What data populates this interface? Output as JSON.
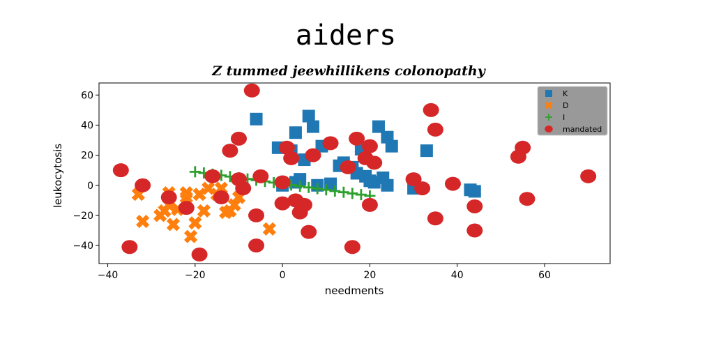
{
  "chart_data": {
    "type": "scatter",
    "suptitle": "aiders",
    "title": "Z tummed jeewhillikens colonopathy",
    "xlabel": "needments",
    "ylabel": "leukocytosis",
    "xlim": [
      -42,
      75
    ],
    "ylim": [
      -52,
      68
    ],
    "xticks": [
      -40,
      -20,
      0,
      20,
      40,
      60
    ],
    "yticks": [
      -40,
      -20,
      0,
      20,
      40,
      60
    ],
    "grid": false,
    "legend": "top-right",
    "series": [
      {
        "name": "K",
        "marker": "square",
        "color": "#1f77b4",
        "x": [
          -6,
          3,
          6,
          7,
          5,
          -1,
          2,
          9,
          13,
          14,
          16,
          18,
          17,
          19,
          22,
          24,
          25,
          23,
          21,
          24,
          30,
          33,
          43,
          44,
          3,
          4,
          11,
          0,
          8,
          20
        ],
        "y": [
          44,
          35,
          46,
          39,
          17,
          25,
          23,
          26,
          13,
          15,
          12,
          24,
          8,
          6,
          39,
          32,
          26,
          5,
          2,
          0,
          -2,
          23,
          -3,
          -4,
          2,
          4,
          1,
          0,
          0,
          3
        ]
      },
      {
        "name": "D",
        "marker": "x",
        "color": "#ff7f0e",
        "x": [
          -33,
          -32,
          -28,
          -27,
          -26,
          -26,
          -25,
          -22,
          -22,
          -21,
          -20,
          -19,
          -18,
          -17,
          -15,
          -14,
          -13,
          -12,
          -11,
          -10,
          -3,
          -24
        ],
        "y": [
          -6,
          -24,
          -20,
          -17,
          -5,
          -13,
          -26,
          -8,
          -5,
          -34,
          -25,
          -6,
          -17,
          -2,
          -6,
          -2,
          -18,
          -17,
          -13,
          -8,
          -29,
          -16
        ]
      },
      {
        "name": "I",
        "marker": "plus",
        "color": "#2ca02c",
        "x": [
          -20,
          -18,
          -16,
          -14,
          -12,
          -10,
          -8,
          -6,
          -4,
          -2,
          0,
          2,
          4,
          6,
          8,
          10,
          12,
          14,
          16,
          18,
          20
        ],
        "y": [
          9.0,
          8.2,
          7.4,
          6.6,
          5.8,
          5.0,
          4.2,
          3.4,
          2.6,
          1.8,
          1.0,
          0.2,
          -0.6,
          -1.4,
          -2.2,
          -3.0,
          -3.8,
          -4.6,
          -5.4,
          -6.2,
          -7.0
        ]
      },
      {
        "name": "mandated",
        "marker": "circle",
        "color": "#d62728",
        "x": [
          -37,
          -35,
          -32,
          -26,
          -22,
          -19,
          -16,
          -14,
          -12,
          -10,
          -10,
          -9,
          -7,
          -6,
          -6,
          -5,
          0,
          0,
          1,
          2,
          3,
          4,
          5,
          6,
          7,
          11,
          15,
          16,
          17,
          19,
          20,
          21,
          20,
          30,
          32,
          34,
          35,
          35,
          39,
          44,
          44,
          54,
          55,
          56,
          70
        ],
        "y": [
          10,
          -41,
          0,
          -8,
          -15,
          -46,
          6,
          -8,
          23,
          31,
          4,
          -2,
          63,
          -20,
          -40,
          6,
          2,
          -12,
          25,
          18,
          -10,
          -18,
          -13,
          -31,
          20,
          28,
          12,
          -41,
          31,
          18,
          26,
          15,
          -13,
          4,
          -2,
          50,
          37,
          -22,
          1,
          -14,
          -30,
          19,
          25,
          -9,
          6
        ]
      }
    ]
  }
}
